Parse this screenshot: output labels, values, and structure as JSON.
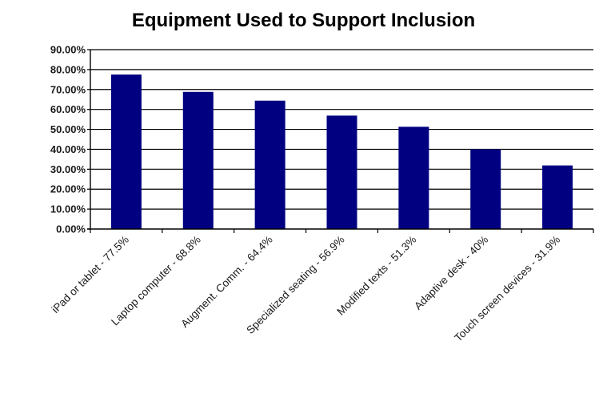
{
  "chart_data": {
    "type": "bar",
    "title": "Equipment Used to Support Inclusion",
    "xlabel": "",
    "ylabel": "",
    "categories": [
      "iPad or tablet - 77.5%",
      "Laptop computer - 68.8%",
      "Augment. Comm. - 64.4%",
      "Specialized seating - 56.9%",
      "Modified texts - 51.3%",
      "Adaptive desk - 40%",
      "Touch screen devices - 31.9%"
    ],
    "values": [
      77.5,
      68.8,
      64.4,
      56.9,
      51.3,
      40,
      31.9
    ],
    "ylim": [
      0,
      90
    ],
    "yticks": [
      "0.00%",
      "10.00%",
      "20.00%",
      "30.00%",
      "40.00%",
      "50.00%",
      "60.00%",
      "70.00%",
      "80.00%",
      "90.00%"
    ],
    "grid": true,
    "legend": "none",
    "bar_color": "#000080",
    "grid_color": "#000000"
  }
}
